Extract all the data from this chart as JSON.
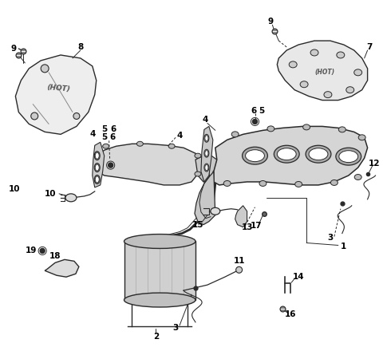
{
  "background_color": "#ffffff",
  "line_color": "#2a2a2a",
  "label_color": "#000000",
  "fig_width": 4.8,
  "fig_height": 4.45,
  "dpi": 100
}
